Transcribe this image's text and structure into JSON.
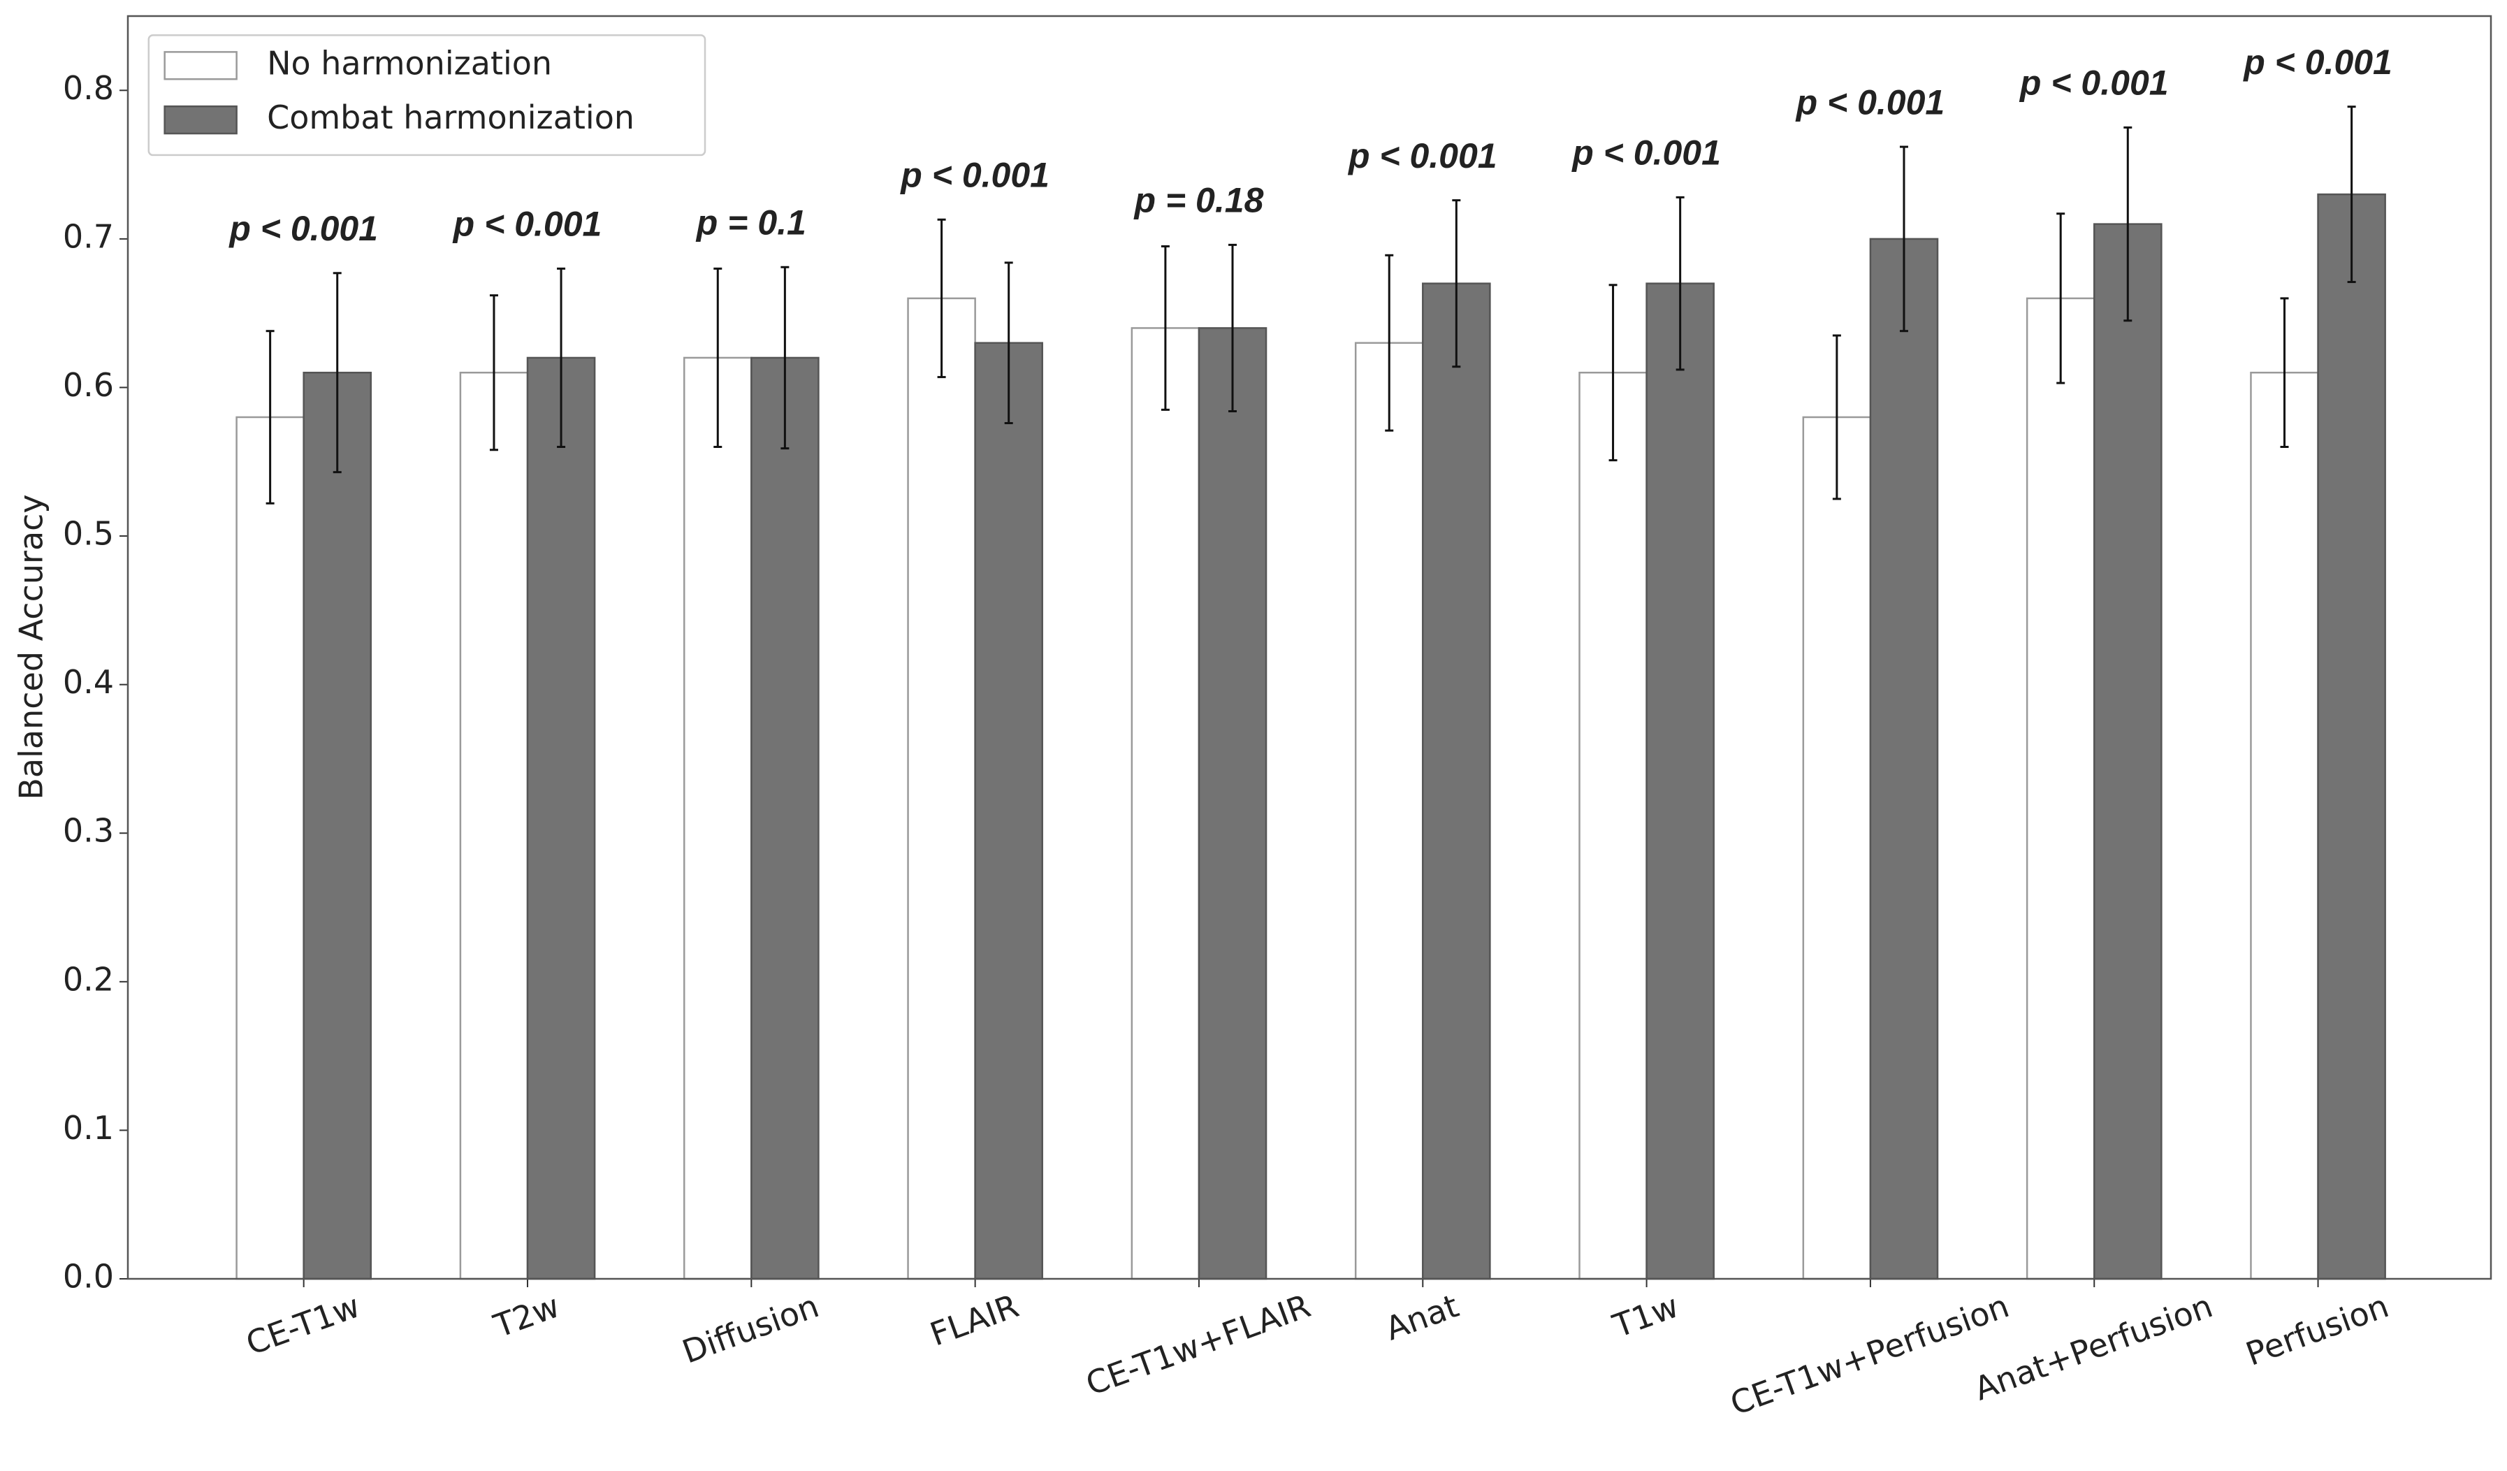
{
  "chart_data": {
    "type": "bar",
    "y_label": "Balanced Accuracy",
    "categories": [
      "CE-T1w",
      "T2w",
      "Diffusion",
      "FLAIR",
      "CE-T1w+FLAIR",
      "Anat",
      "T1w",
      "CE-T1w+Perfusion",
      "Anat+Perfusion",
      "Perfusion"
    ],
    "series": [
      {
        "name": "No harmonization",
        "color": "#ffffff",
        "edge": "#9a9a9a",
        "values": [
          0.58,
          0.61,
          0.62,
          0.66,
          0.64,
          0.63,
          0.61,
          0.58,
          0.66,
          0.61
        ],
        "errors": [
          0.058,
          0.052,
          0.06,
          0.053,
          0.055,
          0.059,
          0.059,
          0.055,
          0.057,
          0.05
        ]
      },
      {
        "name": "Combat harmonization",
        "color": "#737373",
        "edge": "#555555",
        "values": [
          0.61,
          0.62,
          0.62,
          0.63,
          0.64,
          0.67,
          0.67,
          0.7,
          0.71,
          0.73
        ],
        "errors": [
          0.067,
          0.06,
          0.061,
          0.054,
          0.056,
          0.056,
          0.058,
          0.062,
          0.065,
          0.059
        ]
      }
    ],
    "annotations": [
      "p < 0.001",
      "p < 0.001",
      "p = 0.1",
      "p < 0.001",
      "p = 0.18",
      "p < 0.001",
      "p < 0.001",
      "p < 0.001",
      "p < 0.001",
      "p < 0.001"
    ],
    "ylim": [
      0,
      0.85
    ],
    "yticks": [
      {
        "value": 0,
        "label": "0.0"
      },
      0.1,
      0.2,
      0.3,
      0.4,
      0.5,
      0.6,
      0.7,
      0.8
    ],
    "legend": "upper left",
    "grid": false
  }
}
